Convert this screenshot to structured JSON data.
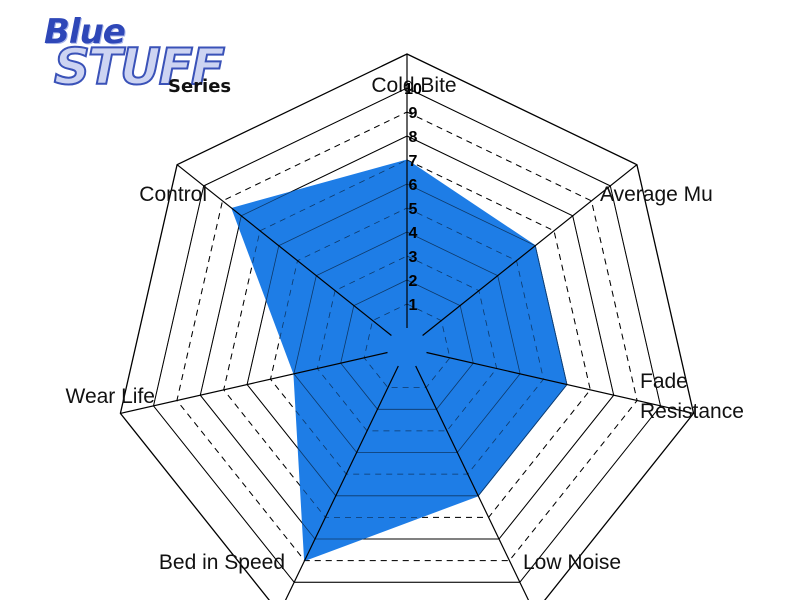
{
  "brand": {
    "logo_line1": "Blue",
    "logo_line2": "STUFF",
    "series_label": "Series"
  },
  "chart_data": {
    "type": "radar",
    "title": "",
    "axes": [
      "Cold Bite",
      "Average Mu",
      "Fade Resistance",
      "Low Noise",
      "Bed in Speed",
      "Wear Life",
      "Control"
    ],
    "ticks": [
      "1",
      "2",
      "3",
      "4",
      "5",
      "6",
      "7",
      "8",
      "9",
      "10"
    ],
    "range": [
      0,
      10
    ],
    "series": [
      {
        "values": [
          7,
          6,
          6,
          6,
          9,
          4,
          8.5
        ]
      }
    ],
    "colors": {
      "fill": "#1e7de6",
      "grid": "#000000"
    }
  }
}
